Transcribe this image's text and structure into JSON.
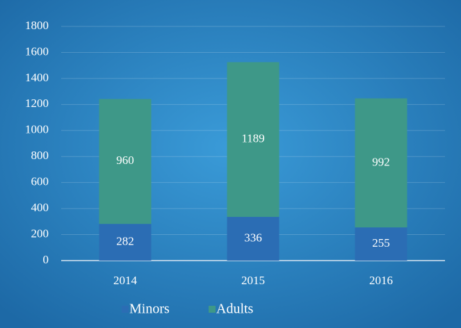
{
  "chart_data": {
    "type": "stacked_bar",
    "categories": [
      "2014",
      "2015",
      "2016"
    ],
    "series": [
      {
        "name": "Minors",
        "color": "#2b6db4",
        "values": [
          282,
          336,
          255
        ]
      },
      {
        "name": "Adults",
        "color": "#3e9888",
        "values": [
          960,
          1189,
          992
        ]
      }
    ],
    "ylim": [
      0,
      1800
    ],
    "yticks": [
      0,
      200,
      400,
      600,
      800,
      1000,
      1200,
      1400,
      1600,
      1800
    ],
    "grid": true,
    "legend": "bottom"
  }
}
